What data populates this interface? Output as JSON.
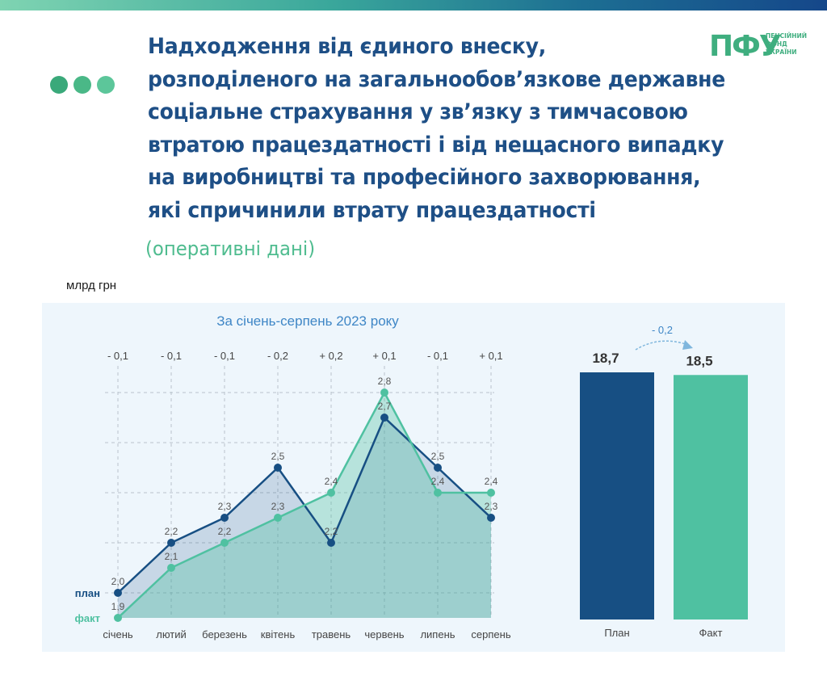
{
  "header": {
    "title": "Надходження від єдиного внеску,\nрозподіленого на загальнообов’язкове державне\nсоціальне страхування у зв’язку з тимчасовою\nвтратою працездатності і від нещасного випадку\nна виробництві та професійного захворювання,\nякі спричинили втрату працездатності",
    "subtitle": "(оперативні дані)",
    "logo_mark": "ПФУ",
    "logo_text": "ПЕНСІЙНИЙ\nФОНД\nУКРАЇНИ"
  },
  "unit": "млрд грн",
  "colors": {
    "plan": "#174f83",
    "fact": "#4fc1a1",
    "dot1": "#3aa97a",
    "dot2": "#4ab887",
    "dot3": "#5cc69a"
  },
  "chart_data": [
    {
      "type": "line",
      "title": "За січень-серпень 2023 року",
      "categories": [
        "січень",
        "лютий",
        "березень",
        "квітень",
        "травень",
        "червень",
        "липень",
        "серпень"
      ],
      "series": [
        {
          "name": "план",
          "values": [
            2.0,
            2.2,
            2.3,
            2.5,
            2.2,
            2.7,
            2.5,
            2.3
          ],
          "labels": [
            "2,0",
            "2,2",
            "2,3",
            "2,5",
            "2,2",
            "2,7",
            "2,5",
            "2,3"
          ]
        },
        {
          "name": "факт",
          "values": [
            1.9,
            2.1,
            2.2,
            2.3,
            2.4,
            2.8,
            2.4,
            2.4
          ],
          "labels": [
            "1,9",
            "2,1",
            "2,2",
            "2,3",
            "2,4",
            "2,8",
            "2,4",
            "2,4"
          ]
        }
      ],
      "differences": [
        "- 0,1",
        "- 0,1",
        "- 0,1",
        "- 0,2",
        "+ 0,2",
        "+ 0,1",
        "- 0,1",
        "+ 0,1"
      ],
      "ylim": [
        1.9,
        2.9
      ],
      "grid": true
    },
    {
      "type": "bar",
      "categories": [
        "План",
        "Факт"
      ],
      "values": [
        18.7,
        18.5
      ],
      "labels": [
        "18,7",
        "18,5"
      ],
      "difference": "- 0,2"
    }
  ]
}
